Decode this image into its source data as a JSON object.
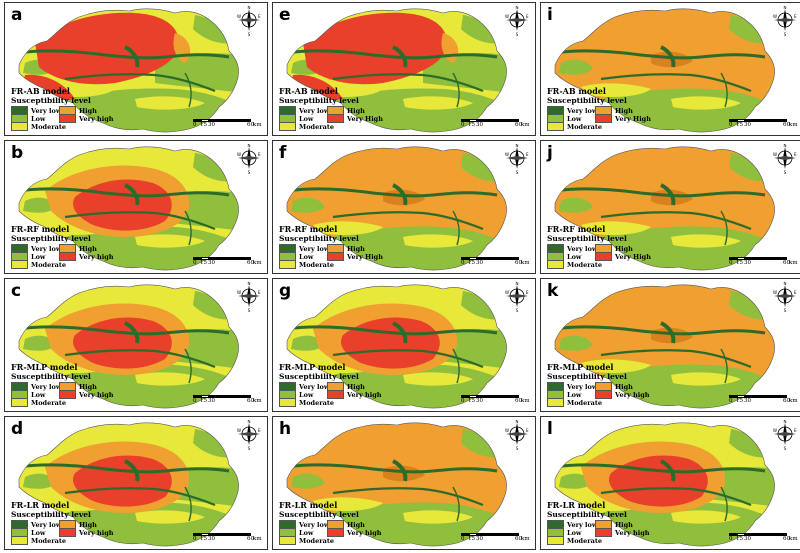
{
  "figure": {
    "panels": [
      {
        "letter": "a",
        "model": "FR-AB model",
        "variant": "very-high-west"
      },
      {
        "letter": "b",
        "model": "FR-RF model",
        "variant": "very-high-center"
      },
      {
        "letter": "c",
        "model": "FR-MLP model",
        "variant": "very-high-center"
      },
      {
        "letter": "d",
        "model": "FR-LR model",
        "variant": "very-high-center"
      },
      {
        "letter": "e",
        "model": "FR-AB model",
        "variant": "very-high-west"
      },
      {
        "letter": "f",
        "model": "FR-RF model",
        "variant": "high-orange"
      },
      {
        "letter": "g",
        "model": "FR-MLP model",
        "variant": "very-high-center"
      },
      {
        "letter": "h",
        "model": "FR-LR model",
        "variant": "high-orange"
      },
      {
        "letter": "i",
        "model": "FR-AB model",
        "variant": "high-orange"
      },
      {
        "letter": "j",
        "model": "FR-RF model",
        "variant": "high-orange"
      },
      {
        "letter": "k",
        "model": "FR-MLP model",
        "variant": "high-orange"
      },
      {
        "letter": "l",
        "model": "FR-LR model",
        "variant": "very-high-center"
      }
    ],
    "legend": {
      "title": "Susceptibility level",
      "classes": [
        {
          "label": "Very low",
          "color": "#2e6b2a"
        },
        {
          "label": "Low",
          "color": "#8fbf3c"
        },
        {
          "label": "Moderate",
          "color": "#e8e83a"
        },
        {
          "label": "High",
          "color": "#f0a030"
        },
        {
          "label": "Very high",
          "color": "#e8402a"
        }
      ],
      "very_high_alt_label": "Very High"
    },
    "scale": {
      "ticks": [
        "0",
        "15",
        "30",
        "60"
      ],
      "unit": "km"
    },
    "compass": {
      "n": "N",
      "s": "S",
      "e": "E",
      "w": "W"
    }
  }
}
